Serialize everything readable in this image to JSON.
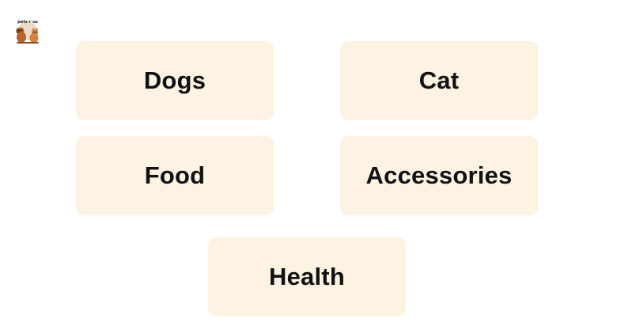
{
  "brand": {
    "logo_text": "pets r us"
  },
  "categories": [
    {
      "label": "Dogs"
    },
    {
      "label": "Cat"
    },
    {
      "label": "Food"
    },
    {
      "label": "Accessories"
    },
    {
      "label": "Health"
    }
  ],
  "colors": {
    "tile_background": "#fdf3e3",
    "tile_text": "#111111",
    "page_background": "#ffffff"
  }
}
